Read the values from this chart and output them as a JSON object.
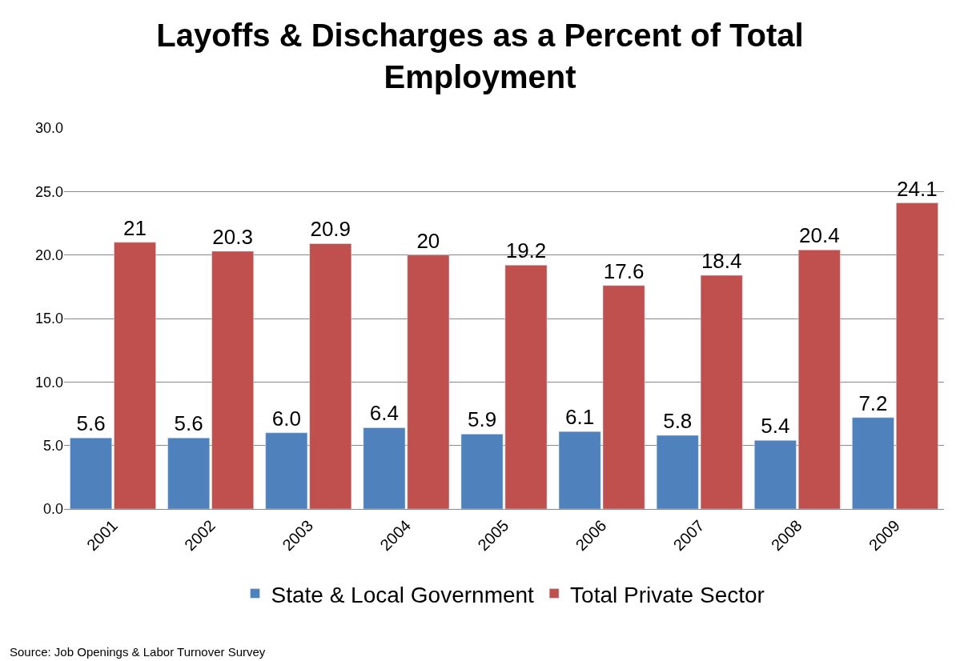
{
  "chart_data": {
    "type": "bar",
    "title": "Layoffs & Discharges as a Percent of Total Employment",
    "categories": [
      "2001",
      "2002",
      "2003",
      "2004",
      "2005",
      "2006",
      "2007",
      "2008",
      "2009"
    ],
    "series": [
      {
        "name": "State & Local Government",
        "color": "#4f81bd",
        "values": [
          5.6,
          5.6,
          6.0,
          6.4,
          5.9,
          6.1,
          5.8,
          5.4,
          7.2
        ],
        "value_labels": [
          "5.6",
          "5.6",
          "6.0",
          "6.4",
          "5.9",
          "6.1",
          "5.8",
          "5.4",
          "7.2"
        ]
      },
      {
        "name": "Total Private Sector",
        "color": "#c0504d",
        "values": [
          21,
          20.3,
          20.9,
          20,
          19.2,
          17.6,
          18.4,
          20.4,
          24.1
        ],
        "value_labels": [
          "21",
          "20.3",
          "20.9",
          "20",
          "19.2",
          "17.6",
          "18.4",
          "20.4",
          "24.1"
        ]
      }
    ],
    "ylim": [
      0,
      30
    ],
    "yticks": [
      {
        "value": 0,
        "label": "0.0"
      },
      {
        "value": 5,
        "label": "5.0"
      },
      {
        "value": 10,
        "label": "10.0"
      },
      {
        "value": 15,
        "label": "15.0"
      },
      {
        "value": 20,
        "label": "20.0"
      },
      {
        "value": 25,
        "label": "25.0"
      },
      {
        "value": 30,
        "label": "30.0"
      }
    ],
    "grid": "y",
    "legend": "bottom",
    "annotations": [
      "Source: Job Openings & Labor Turnover Survey"
    ]
  }
}
